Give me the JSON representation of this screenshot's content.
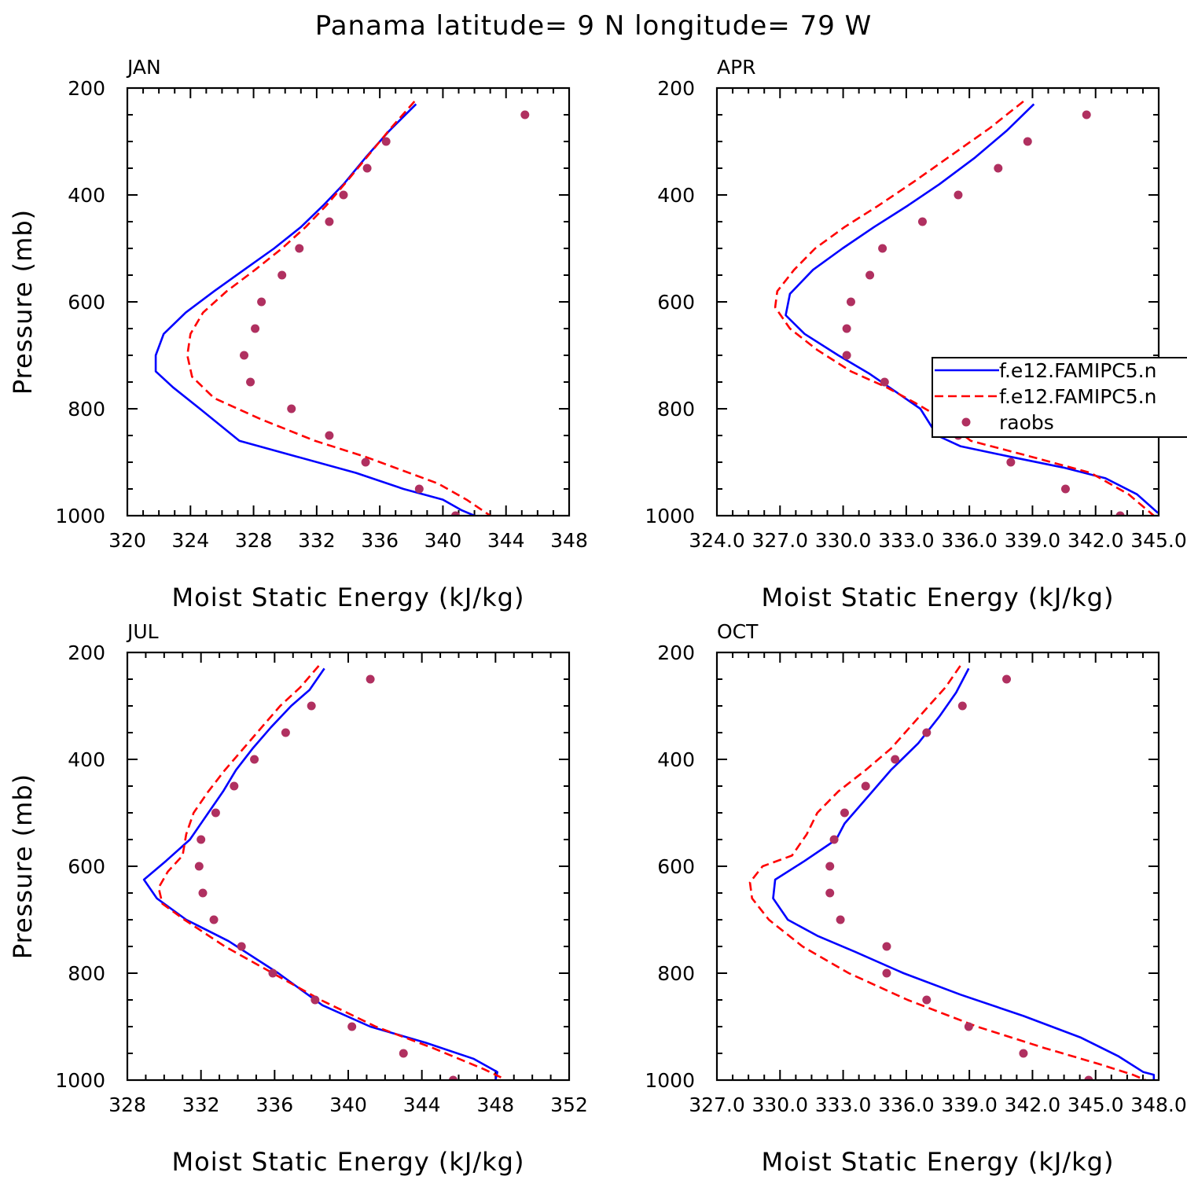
{
  "figure": {
    "title": "Panama  latitude= 9 N longitude= 79 W"
  },
  "legend": {
    "entries": [
      {
        "label": "f.e12.FAMIPC5.n",
        "color": "#0000ff",
        "style": "solid"
      },
      {
        "label": "f.e12.FAMIPC5.n",
        "color": "#ff0000",
        "style": "dashed"
      },
      {
        "label": "raobs",
        "color": "#b03060",
        "style": "dot"
      }
    ]
  },
  "chart_data": [
    {
      "type": "line",
      "panel": "JAN",
      "title": "JAN",
      "xlabel": "Moist Static Energy (kJ/kg)",
      "ylabel": "Pressure (mb)",
      "xlim": [
        320,
        348
      ],
      "ylim": [
        200,
        1000
      ],
      "xticks": [
        320,
        324,
        328,
        332,
        336,
        340,
        344,
        348
      ],
      "xtick_labels": [
        "320",
        "324",
        "328",
        "332",
        "336",
        "340",
        "344",
        "348"
      ],
      "yticks": [
        200,
        400,
        600,
        800,
        1000
      ],
      "ytick_labels": [
        "200",
        "400",
        "600",
        "800",
        "1000"
      ],
      "series": [
        {
          "name": "f.e12.FAMIPC5.n",
          "color": "#0000ff",
          "style": "solid",
          "x": [
            338.3,
            336.6,
            335.1,
            333.7,
            332.4,
            331.0,
            329.3,
            327.4,
            325.5,
            323.7,
            322.3,
            321.8,
            321.8,
            322.9,
            324.6,
            327.1,
            330.8,
            334.5,
            337.5,
            340.0,
            341.2,
            342.0
          ],
          "y": [
            230,
            280,
            330,
            380,
            420,
            460,
            500,
            540,
            580,
            620,
            660,
            700,
            730,
            760,
            800,
            860,
            890,
            920,
            950,
            970,
            990,
            1000
          ]
        },
        {
          "name": "f.e12.FAMIPC5.n",
          "color": "#ff0000",
          "style": "dashed",
          "x": [
            338.2,
            336.7,
            335.3,
            333.9,
            332.6,
            331.3,
            329.8,
            328.1,
            326.3,
            324.8,
            324.0,
            323.8,
            324.1,
            325.5,
            328.5,
            331.9,
            335.1,
            339.7,
            341.5,
            342.5,
            343.0
          ],
          "y": [
            225,
            275,
            325,
            375,
            420,
            460,
            500,
            540,
            580,
            620,
            660,
            700,
            740,
            780,
            820,
            860,
            890,
            940,
            970,
            990,
            1000
          ]
        },
        {
          "name": "raobs",
          "color": "#b03060",
          "style": "dot",
          "x": [
            345.2,
            336.4,
            335.2,
            333.7,
            332.8,
            330.9,
            329.8,
            328.5,
            328.1,
            327.4,
            327.8,
            330.4,
            332.8,
            335.1,
            338.5,
            340.8
          ],
          "y": [
            250,
            300,
            350,
            400,
            450,
            500,
            550,
            600,
            650,
            700,
            750,
            800,
            850,
            900,
            950,
            1000
          ]
        }
      ]
    },
    {
      "type": "line",
      "panel": "APR",
      "title": "APR",
      "xlabel": "Moist Static Energy (kJ/kg)",
      "ylabel": "",
      "xlim": [
        324.03,
        345.03
      ],
      "ylim": [
        200,
        1000
      ],
      "xticks": [
        324.03,
        327.03,
        330.03,
        333.03,
        336.03,
        339.03,
        342.03,
        345.03
      ],
      "xtick_labels": [
        "324.0",
        "327.0",
        "330.0",
        "333.0",
        "336.0",
        "339.0",
        "342.0",
        "345.0"
      ],
      "yticks": [
        200,
        400,
        600,
        800,
        1000
      ],
      "ytick_labels": [
        "200",
        "400",
        "600",
        "800",
        "1000"
      ],
      "series": [
        {
          "name": "f.e12.FAMIPC5.n",
          "color": "#0000ff",
          "style": "solid",
          "x": [
            339.1,
            337.8,
            336.3,
            334.6,
            333.1,
            331.5,
            330.0,
            328.6,
            327.5,
            327.3,
            328.2,
            329.8,
            331.3,
            332.6,
            333.7,
            334.5,
            335.6,
            338.0,
            340.5,
            342.5,
            344.0,
            345.0
          ],
          "y": [
            230,
            280,
            330,
            380,
            420,
            460,
            500,
            540,
            585,
            625,
            660,
            700,
            735,
            770,
            800,
            850,
            870,
            890,
            910,
            930,
            960,
            995
          ]
        },
        {
          "name": "f.e12.FAMIPC5.n",
          "color": "#ff0000",
          "style": "dashed",
          "x": [
            338.6,
            337.0,
            335.2,
            333.4,
            331.7,
            330.1,
            328.7,
            327.7,
            326.9,
            326.8,
            327.5,
            328.8,
            330.4,
            332.1,
            333.5,
            334.8,
            336.1,
            339.0,
            341.8,
            343.6,
            344.8
          ],
          "y": [
            225,
            275,
            325,
            375,
            420,
            460,
            500,
            540,
            580,
            610,
            650,
            690,
            730,
            760,
            790,
            820,
            860,
            890,
            920,
            960,
            1000
          ]
        },
        {
          "name": "raobs",
          "color": "#b03060",
          "style": "dot",
          "x": [
            341.6,
            338.8,
            337.4,
            335.5,
            333.8,
            331.9,
            331.3,
            330.4,
            330.2,
            330.2,
            332.0,
            334.5,
            335.5,
            338.0,
            340.6,
            343.2
          ],
          "y": [
            250,
            300,
            350,
            400,
            450,
            500,
            550,
            600,
            650,
            700,
            750,
            800,
            850,
            900,
            950,
            1000
          ]
        }
      ]
    },
    {
      "type": "line",
      "panel": "JUL",
      "title": "JUL",
      "xlabel": "Moist Static Energy (kJ/kg)",
      "ylabel": "Pressure (mb)",
      "xlim": [
        328,
        352
      ],
      "ylim": [
        200,
        1000
      ],
      "xticks": [
        328,
        332,
        336,
        340,
        344,
        348,
        352
      ],
      "xtick_labels": [
        "328",
        "332",
        "336",
        "340",
        "344",
        "348",
        "352"
      ],
      "yticks": [
        200,
        400,
        600,
        800,
        1000
      ],
      "ytick_labels": [
        "200",
        "400",
        "600",
        "800",
        "1000"
      ],
      "series": [
        {
          "name": "f.e12.FAMIPC5.n",
          "color": "#0000ff",
          "style": "solid",
          "x": [
            338.7,
            337.9,
            336.9,
            335.8,
            334.8,
            333.9,
            333.2,
            332.4,
            331.4,
            330.1,
            328.9,
            329.6,
            331.2,
            333.5,
            336.2,
            338.6,
            341.2,
            344.2,
            346.8,
            348.1,
            348.0
          ],
          "y": [
            230,
            270,
            300,
            340,
            380,
            420,
            460,
            500,
            550,
            590,
            625,
            660,
            700,
            740,
            800,
            860,
            900,
            930,
            960,
            985,
            1000
          ]
        },
        {
          "name": "f.e12.FAMIPC5.n",
          "color": "#ff0000",
          "style": "dashed",
          "x": [
            338.4,
            337.4,
            336.3,
            335.3,
            334.3,
            333.3,
            332.4,
            331.6,
            331.2,
            331.0,
            330.2,
            329.7,
            329.9,
            331.1,
            333.3,
            335.9,
            338.5,
            341.5,
            344.6,
            347.4,
            348.3
          ],
          "y": [
            225,
            265,
            300,
            340,
            380,
            420,
            460,
            500,
            540,
            580,
            610,
            640,
            670,
            700,
            750,
            800,
            850,
            900,
            940,
            980,
            995
          ]
        },
        {
          "name": "raobs",
          "color": "#b03060",
          "style": "dot",
          "x": [
            341.2,
            338.0,
            336.6,
            334.9,
            333.8,
            332.8,
            332.0,
            331.9,
            332.1,
            332.7,
            334.2,
            335.9,
            338.2,
            340.2,
            343.0,
            345.7
          ],
          "y": [
            250,
            300,
            350,
            400,
            450,
            500,
            550,
            600,
            650,
            700,
            750,
            800,
            850,
            900,
            950,
            1000
          ]
        }
      ]
    },
    {
      "type": "line",
      "panel": "OCT",
      "title": "OCT",
      "xlabel": "Moist Static Energy (kJ/kg)",
      "ylabel": "",
      "xlim": [
        327.03,
        348.03
      ],
      "ylim": [
        200,
        1000
      ],
      "xticks": [
        327.03,
        330.03,
        333.03,
        336.03,
        339.03,
        342.03,
        345.03,
        348.03
      ],
      "xtick_labels": [
        "327.0",
        "330.0",
        "333.0",
        "336.0",
        "339.0",
        "342.0",
        "345.0",
        "348.0"
      ],
      "yticks": [
        200,
        400,
        600,
        800,
        1000
      ],
      "ytick_labels": [
        "200",
        "400",
        "600",
        "800",
        "1000"
      ],
      "series": [
        {
          "name": "f.e12.FAMIPC5.n",
          "color": "#0000ff",
          "style": "solid",
          "x": [
            339.0,
            338.4,
            337.6,
            336.6,
            335.3,
            334.2,
            333.1,
            332.7,
            331.2,
            329.8,
            329.7,
            330.4,
            331.8,
            333.6,
            335.9,
            338.6,
            341.6,
            344.3,
            346.1,
            347.3,
            347.8,
            347.8
          ],
          "y": [
            230,
            275,
            320,
            370,
            420,
            470,
            520,
            550,
            590,
            625,
            660,
            700,
            730,
            760,
            800,
            840,
            880,
            920,
            955,
            985,
            990,
            1000
          ]
        },
        {
          "name": "f.e12.FAMIPC5.n",
          "color": "#ff0000",
          "style": "dashed",
          "x": [
            338.6,
            337.9,
            337.1,
            336.2,
            335.3,
            334.1,
            332.8,
            331.8,
            331.3,
            330.6,
            329.2,
            328.6,
            328.7,
            329.5,
            331.1,
            333.3,
            336.1,
            339.4,
            342.6,
            345.2,
            346.8,
            347.4
          ],
          "y": [
            225,
            265,
            300,
            340,
            380,
            420,
            460,
            500,
            540,
            580,
            600,
            630,
            660,
            700,
            750,
            800,
            850,
            900,
            940,
            970,
            990,
            1000
          ]
        },
        {
          "name": "raobs",
          "color": "#b03060",
          "style": "dot",
          "x": [
            340.8,
            338.7,
            337.0,
            335.5,
            334.1,
            333.1,
            332.6,
            332.4,
            332.4,
            332.9,
            335.1,
            335.1,
            337.0,
            339.0,
            341.6,
            344.7
          ],
          "y": [
            250,
            300,
            350,
            400,
            450,
            500,
            550,
            600,
            650,
            700,
            750,
            800,
            850,
            900,
            950,
            1000
          ]
        }
      ]
    }
  ]
}
